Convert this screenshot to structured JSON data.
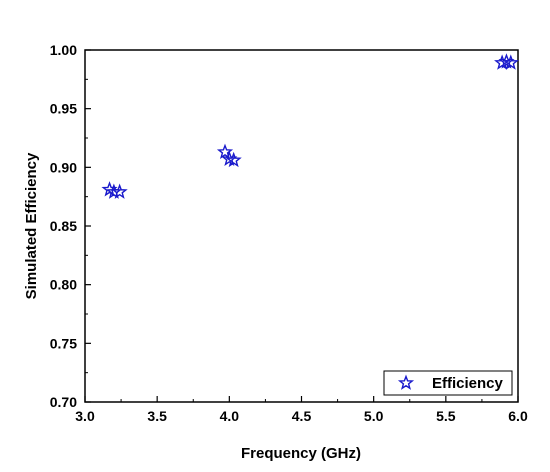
{
  "chart_data": {
    "type": "scatter",
    "title": "",
    "xlabel": "Frequency (GHz)",
    "ylabel": "Simulated Efficiency",
    "xlim": [
      3.0,
      6.0
    ],
    "ylim": [
      0.7,
      1.0
    ],
    "x_ticks": [
      "3.0",
      "3.5",
      "4.0",
      "4.5",
      "5.0",
      "5.5",
      "6.0"
    ],
    "y_ticks": [
      "0.70",
      "0.75",
      "0.80",
      "0.85",
      "0.90",
      "0.95",
      "1.00"
    ],
    "grid": false,
    "legend_position": "bottom-right",
    "marker": "star",
    "marker_color": "#1a1acc",
    "series": [
      {
        "name": "Efficiency",
        "points": [
          {
            "x": 3.17,
            "y": 0.881
          },
          {
            "x": 3.2,
            "y": 0.879
          },
          {
            "x": 3.24,
            "y": 0.879
          },
          {
            "x": 3.97,
            "y": 0.913
          },
          {
            "x": 4.0,
            "y": 0.907
          },
          {
            "x": 4.03,
            "y": 0.906
          },
          {
            "x": 5.89,
            "y": 0.989
          },
          {
            "x": 5.92,
            "y": 0.99
          },
          {
            "x": 5.95,
            "y": 0.989
          }
        ]
      }
    ]
  }
}
